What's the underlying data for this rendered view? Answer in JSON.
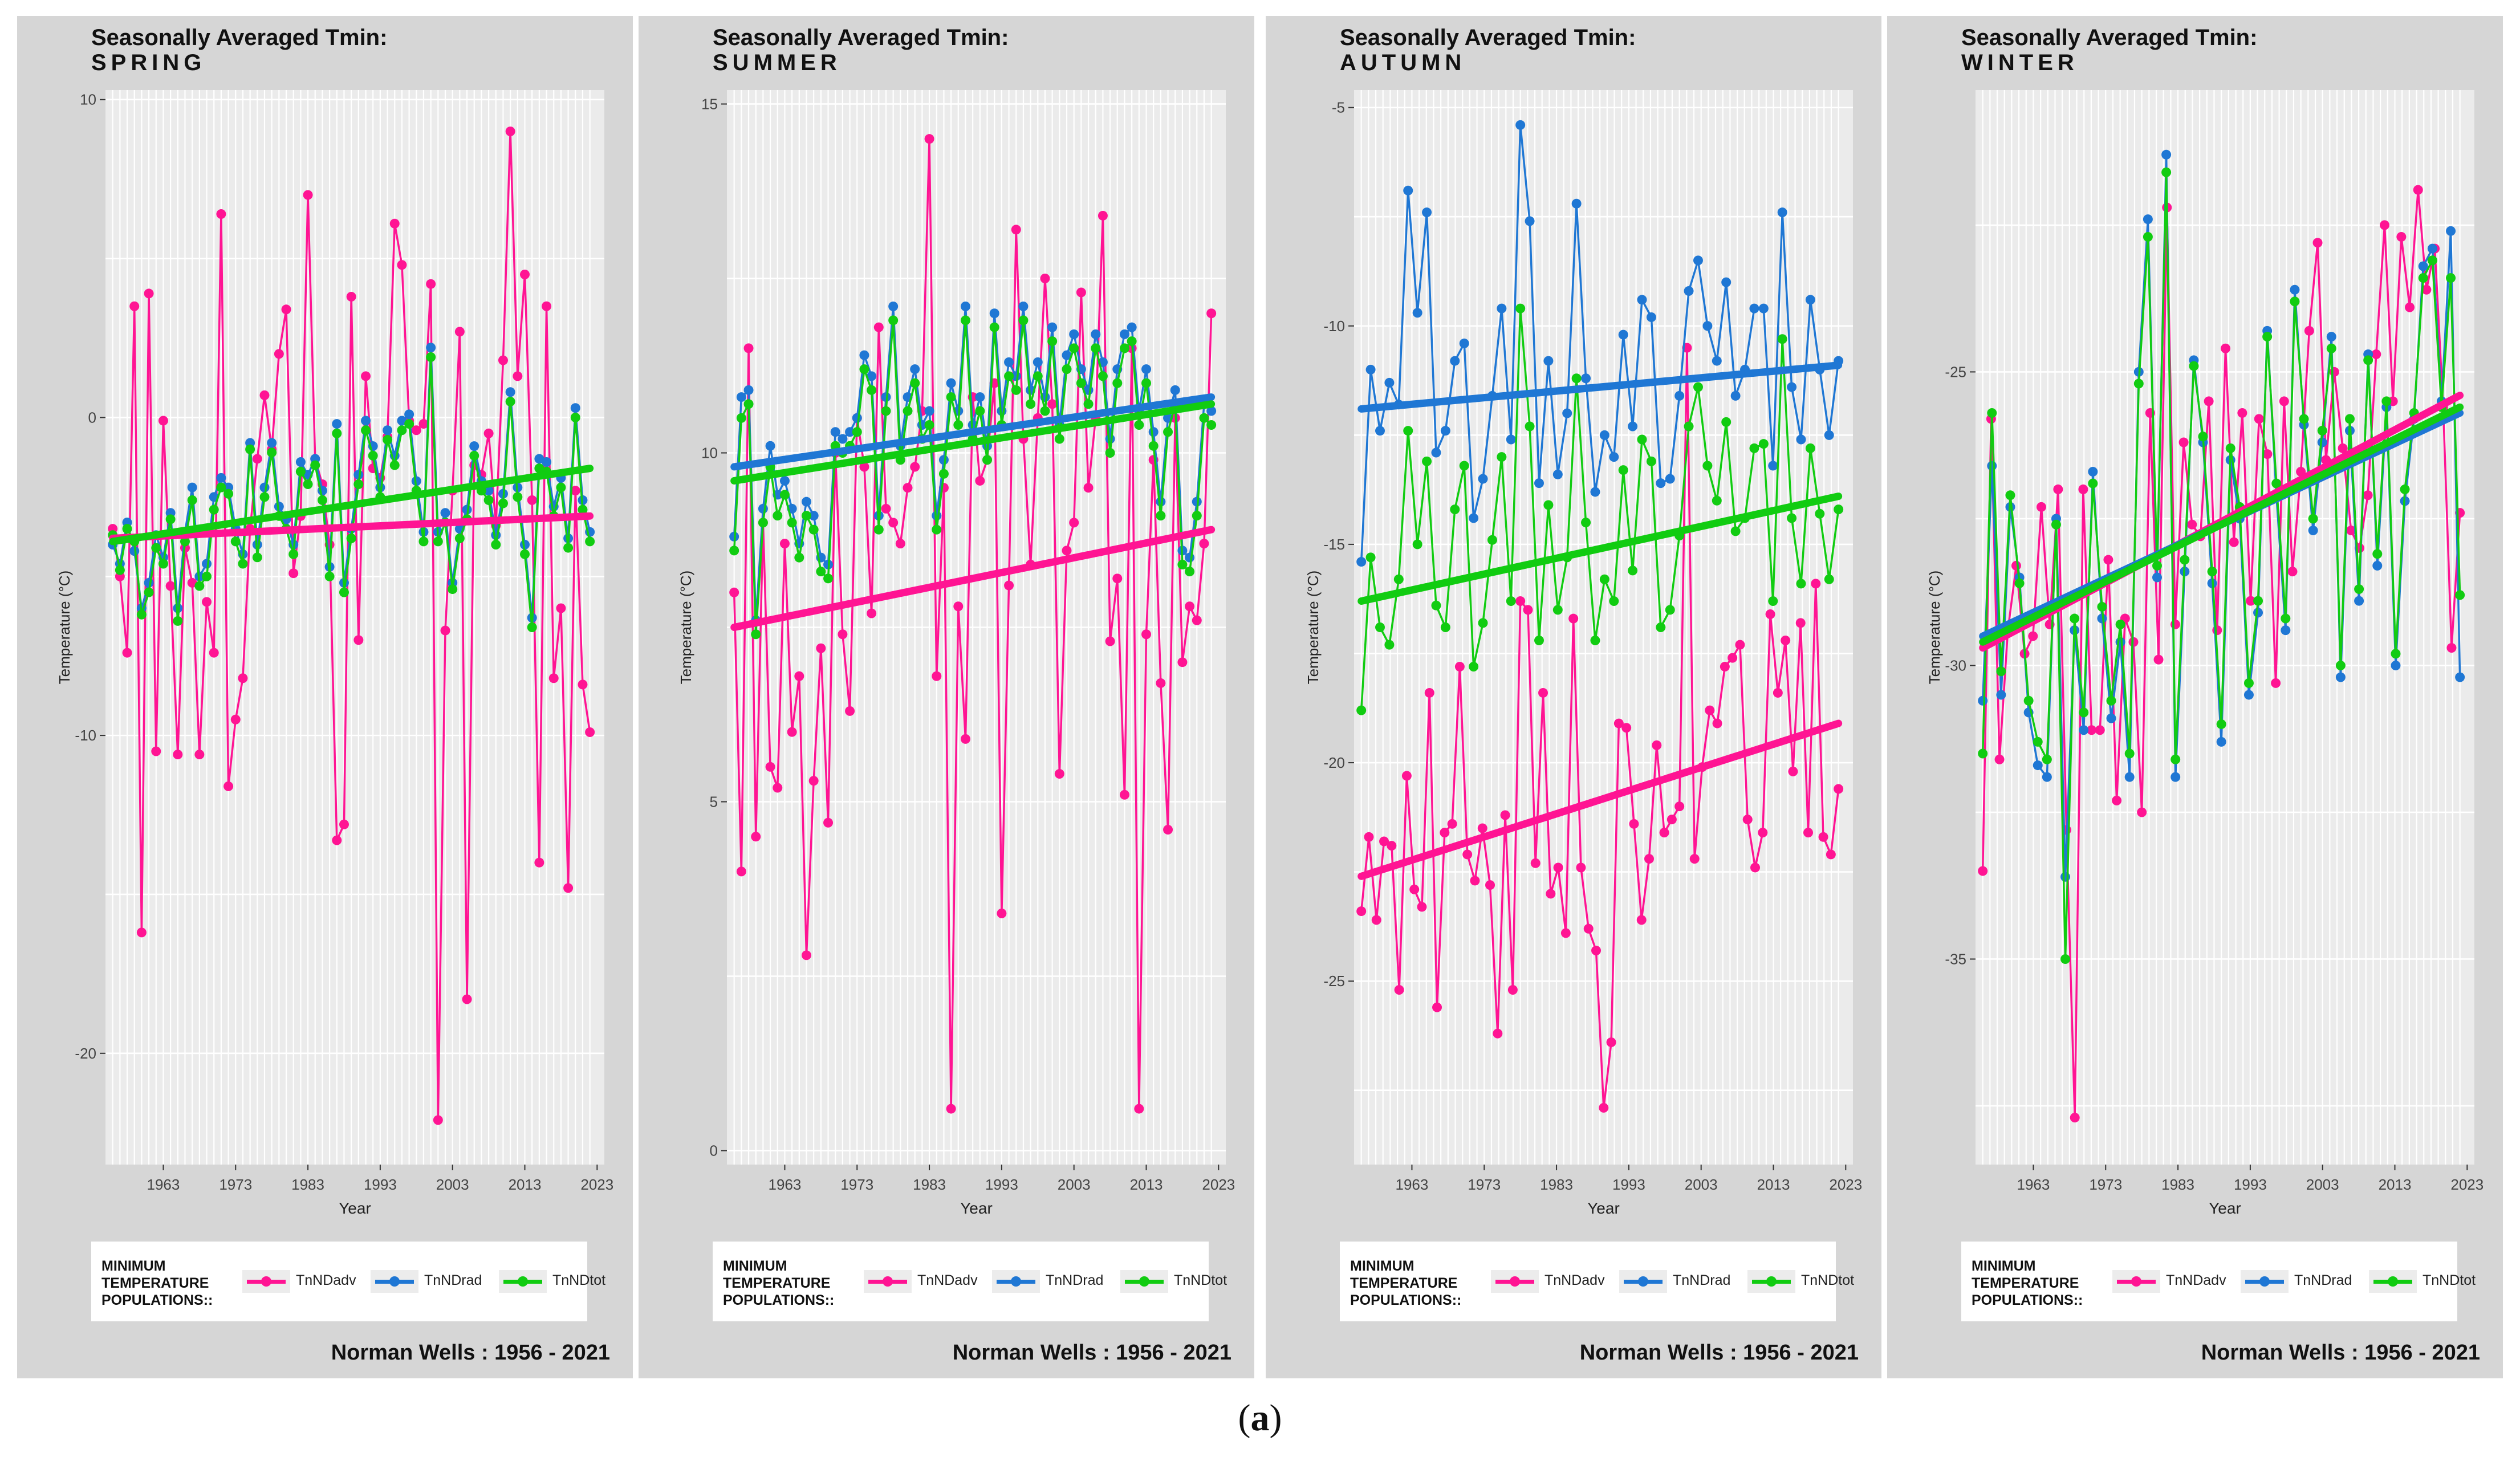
{
  "legend": {
    "title_lines": [
      "MINIMUM",
      "TEMPERATURE",
      "POPULATIONS::"
    ],
    "items": [
      {
        "label": "TnNDadv",
        "color": "#ff1493"
      },
      {
        "label": "TnNDrad",
        "color": "#1f77d4"
      },
      {
        "label": "TnNDtot",
        "color": "#11cc11"
      }
    ]
  },
  "footer": "Norman Wells :  1956 - 2021",
  "caption": {
    "open": "(",
    "letter": "a",
    "close": ")"
  },
  "chart_data": [
    {
      "type": "line",
      "title": "Seasonally Averaged Tmin:",
      "subtitle": "SPRING",
      "xlabel": "Year",
      "ylabel": "Temperature (°C)",
      "xlim": [
        1955,
        2024
      ],
      "ylim": [
        -23.5,
        10.3
      ],
      "xticks": [
        1963,
        1973,
        1983,
        1993,
        2003,
        2013,
        2023
      ],
      "yticks": [
        -20,
        -10,
        0,
        10
      ],
      "grid": true,
      "legend_position": "bottom",
      "series": [
        {
          "name": "TnNDadv",
          "color": "#ff1493",
          "y": [
            -3.5,
            -5,
            -7.4,
            3.5,
            -16.2,
            3.9,
            -10.5,
            -0.1,
            -5.3,
            -10.6,
            -4.1,
            -5.2,
            -10.6,
            -5.8,
            -7.4,
            6.4,
            -11.6,
            -9.5,
            -8.2,
            -3.5,
            -1.3,
            0.7,
            -1,
            2,
            3.4,
            -4.9,
            -3.1,
            7,
            -1.3,
            -2.1,
            -4,
            -13.3,
            -12.8,
            3.8,
            -7,
            1.3,
            -1.6,
            -1.9,
            -0.6,
            6.1,
            4.8,
            -0.1,
            -0.4,
            -0.2,
            4.2,
            -22.1,
            -6.7,
            -2.3,
            2.7,
            -18.3,
            -1.5,
            -1.8,
            -0.5,
            -3.4,
            1.8,
            9,
            1.3,
            4.5,
            -2.6,
            -14,
            3.5,
            -8.2,
            -6,
            -14.8,
            -2.3,
            -8.4,
            -9.9
          ]
        },
        {
          "name": "TnNDrad",
          "color": "#1f77d4",
          "y": [
            -4,
            -4.6,
            -3.3,
            -4.2,
            -6,
            -5.2,
            -3.7,
            -4.4,
            -3,
            -6,
            -3.6,
            -2.2,
            -5,
            -4.6,
            -2.5,
            -1.9,
            -2.2,
            -3.5,
            -4.3,
            -0.8,
            -4,
            -2.2,
            -0.8,
            -2.8,
            -3.2,
            -4,
            -1.4,
            -1.8,
            -1.3,
            -2.3,
            -4.7,
            -0.2,
            -5.2,
            -3.5,
            -1.8,
            -0.1,
            -0.9,
            -2.2,
            -0.4,
            -1.2,
            -0.1,
            0.1,
            -2,
            -3.6,
            2.2,
            -3.6,
            -3,
            -5.2,
            -3.5,
            -2.9,
            -0.9,
            -2,
            -2.3,
            -3.7,
            -2.4,
            0.8,
            -2.2,
            -4,
            -6.3,
            -1.3,
            -1.4,
            -2.8,
            -1.9,
            -3.8,
            0.3,
            -2.6,
            -3.6
          ]
        },
        {
          "name": "TnNDtot",
          "color": "#11cc11",
          "y": [
            -3.7,
            -4.8,
            -3.5,
            -3.9,
            -6.2,
            -5.5,
            -4.1,
            -4.6,
            -3.2,
            -6.4,
            -3.9,
            -2.6,
            -5.3,
            -5,
            -2.9,
            -2.2,
            -2.4,
            -3.9,
            -4.6,
            -1,
            -4.4,
            -2.5,
            -1.1,
            -3.1,
            -3.5,
            -4.3,
            -1.7,
            -2.1,
            -1.5,
            -2.6,
            -5,
            -0.5,
            -5.5,
            -3.8,
            -2.1,
            -0.4,
            -1.2,
            -2.5,
            -0.7,
            -1.5,
            -0.4,
            -0.2,
            -2.3,
            -3.9,
            1.9,
            -3.9,
            -3.3,
            -5.4,
            -3.8,
            -3.2,
            -1.2,
            -2.3,
            -2.6,
            -4,
            -2.7,
            0.5,
            -2.5,
            -4.3,
            -6.6,
            -1.6,
            -1.7,
            -3.1,
            -2.2,
            -4.1,
            0,
            -2.9,
            -3.9
          ]
        }
      ],
      "trends": [
        {
          "name": "TnNDadv",
          "start": -3.8,
          "end": -3.1
        },
        {
          "name": "TnNDtot",
          "start": -3.9,
          "end": -1.6
        }
      ]
    },
    {
      "type": "line",
      "title": "Seasonally Averaged Tmin:",
      "subtitle": "SUMMER",
      "xlabel": "Year",
      "ylabel": "Temperature (°C)",
      "xlim": [
        1955,
        2024
      ],
      "ylim": [
        -0.2,
        15.2
      ],
      "xticks": [
        1963,
        1973,
        1983,
        1993,
        2003,
        2013,
        2023
      ],
      "yticks": [
        0,
        5,
        10,
        15
      ],
      "grid": true,
      "legend_position": "bottom",
      "series": [
        {
          "name": "TnNDadv",
          "color": "#ff1493",
          "y": [
            8,
            4,
            11.5,
            4.5,
            9,
            5.5,
            5.2,
            8.7,
            6,
            6.8,
            2.8,
            5.3,
            7.2,
            4.7,
            10,
            7.4,
            6.3,
            10.5,
            9.8,
            7.7,
            11.8,
            9.2,
            9,
            8.7,
            9.5,
            9.8,
            10.6,
            14.5,
            6.8,
            9.5,
            0.6,
            7.8,
            5.9,
            10.8,
            9.6,
            9.9,
            11,
            3.4,
            8.1,
            13.2,
            10.2,
            8.4,
            10.5,
            12.5,
            10.7,
            5.4,
            8.6,
            9,
            12.3,
            9.5,
            10.5,
            13.4,
            7.3,
            8.2,
            5.1,
            11.5,
            0.6,
            7.4,
            9.9,
            6.7,
            4.6,
            10.5,
            7,
            7.8,
            7.6,
            8.7,
            12
          ]
        },
        {
          "name": "TnNDrad",
          "color": "#1f77d4",
          "y": [
            8.8,
            10.8,
            10.9,
            7.6,
            9.2,
            10.1,
            9.4,
            9.6,
            9.2,
            8.7,
            9.3,
            9.1,
            8.5,
            8.4,
            10.3,
            10.2,
            10.3,
            10.5,
            11.4,
            11.1,
            9.1,
            10.8,
            12.1,
            10.1,
            10.8,
            11.2,
            10.4,
            10.6,
            9.1,
            9.9,
            11,
            10.6,
            12.1,
            10.4,
            10.8,
            10.1,
            12,
            10.6,
            11.3,
            11.1,
            12.1,
            10.9,
            11.3,
            10.8,
            11.8,
            10.4,
            11.4,
            11.7,
            11.2,
            10.9,
            11.7,
            11.3,
            10.2,
            11.2,
            11.7,
            11.8,
            10.6,
            11.2,
            10.3,
            9.3,
            10.5,
            10.9,
            8.6,
            8.5,
            9.3,
            10.7,
            10.6
          ]
        },
        {
          "name": "TnNDtot",
          "color": "#11cc11",
          "y": [
            8.6,
            10.5,
            10.7,
            7.4,
            9,
            9.8,
            9.1,
            9.4,
            9,
            8.5,
            9.1,
            8.9,
            8.3,
            8.2,
            10.1,
            10,
            10.1,
            10.3,
            11.2,
            10.9,
            8.9,
            10.6,
            11.9,
            9.9,
            10.6,
            11,
            10.2,
            10.4,
            8.9,
            9.7,
            10.8,
            10.4,
            11.9,
            10.2,
            10.6,
            9.9,
            11.8,
            10.4,
            11.1,
            10.9,
            11.9,
            10.7,
            11.1,
            10.6,
            11.6,
            10.2,
            11.2,
            11.5,
            11,
            10.7,
            11.5,
            11.1,
            10,
            11,
            11.5,
            11.6,
            10.4,
            11,
            10.1,
            9.1,
            10.3,
            10.7,
            8.4,
            8.3,
            9.1,
            10.5,
            10.4
          ]
        }
      ],
      "trends": [
        {
          "name": "TnNDadv",
          "start": 7.5,
          "end": 8.9
        },
        {
          "name": "TnNDrad",
          "start": 9.8,
          "end": 10.8
        },
        {
          "name": "TnNDtot",
          "start": 9.6,
          "end": 10.7
        }
      ]
    },
    {
      "type": "line",
      "title": "Seasonally Averaged Tmin:",
      "subtitle": "AUTUMN",
      "xlabel": "Year",
      "ylabel": "Temperature (°C)",
      "xlim": [
        1955,
        2024
      ],
      "ylim": [
        -29.2,
        -4.6
      ],
      "xticks": [
        1963,
        1973,
        1983,
        1993,
        2003,
        2013,
        2023
      ],
      "yticks": [
        -25,
        -20,
        -15,
        -10,
        -5
      ],
      "grid": true,
      "legend_position": "bottom",
      "series": [
        {
          "name": "TnNDadv",
          "color": "#ff1493",
          "y": [
            -23.4,
            -21.7,
            -23.6,
            -21.8,
            -21.9,
            -25.2,
            -20.3,
            -22.9,
            -23.3,
            -18.4,
            -25.6,
            -21.6,
            -21.4,
            -17.8,
            -22.1,
            -22.7,
            -21.5,
            -22.8,
            -26.2,
            -21.2,
            -25.2,
            -16.3,
            -16.5,
            -22.3,
            -18.4,
            -23,
            -22.4,
            -23.9,
            -16.7,
            -22.4,
            -23.8,
            -24.3,
            -27.9,
            -26.4,
            -19.1,
            -19.2,
            -21.4,
            -23.6,
            -22.2,
            -19.6,
            -21.6,
            -21.3,
            -21,
            -10.5,
            -22.2,
            -20.1,
            -18.8,
            -19.1,
            -17.8,
            -17.6,
            -17.3,
            -21.3,
            -22.4,
            -21.6,
            -16.6,
            -18.4,
            -17.2,
            -20.2,
            -16.8,
            -21.6,
            -15.9,
            -21.7,
            -22.1,
            -20.6
          ]
        },
        {
          "name": "TnNDrad",
          "color": "#1f77d4",
          "y": [
            -15.4,
            -11,
            -12.4,
            -11.3,
            -11.8,
            -6.9,
            -9.7,
            -7.4,
            -12.9,
            -12.4,
            -10.8,
            -10.4,
            -14.4,
            -13.5,
            -11.6,
            -9.6,
            -12.6,
            -5.4,
            -7.6,
            -13.6,
            -10.8,
            -13.4,
            -12,
            -7.2,
            -11.2,
            -13.8,
            -12.5,
            -13,
            -10.2,
            -12.3,
            -9.4,
            -9.8,
            -13.6,
            -13.5,
            -11.6,
            -9.2,
            -8.5,
            -10,
            -10.8,
            -9,
            -11.6,
            -11,
            -9.6,
            -9.6,
            -13.2,
            -7.4,
            -11.4,
            -12.6,
            -9.4,
            -11,
            -12.5,
            -10.8
          ]
        },
        {
          "name": "TnNDtot",
          "color": "#11cc11",
          "y": [
            -18.8,
            -15.3,
            -16.9,
            -17.3,
            -15.8,
            -12.4,
            -15,
            -13.1,
            -16.4,
            -16.9,
            -14.2,
            -13.2,
            -17.8,
            -16.8,
            -14.9,
            -13,
            -16.3,
            -9.6,
            -12.3,
            -17.2,
            -14.1,
            -16.5,
            -15.3,
            -11.2,
            -14.5,
            -17.2,
            -15.8,
            -16.3,
            -13.3,
            -15.6,
            -12.6,
            -13.1,
            -16.9,
            -16.5,
            -14.8,
            -12.3,
            -11.4,
            -13.2,
            -14,
            -12.2,
            -14.7,
            -14.4,
            -12.8,
            -12.7,
            -16.3,
            -10.3,
            -14.4,
            -15.9,
            -12.8,
            -14.3,
            -15.8,
            -14.2
          ]
        }
      ],
      "trends": [
        {
          "name": "TnNDadv",
          "start": -22.6,
          "end": -19.1
        },
        {
          "name": "TnNDrad",
          "start": -11.9,
          "end": -10.9
        },
        {
          "name": "TnNDtot",
          "start": -16.3,
          "end": -13.9
        }
      ]
    },
    {
      "type": "line",
      "title": "Seasonally Averaged Tmin:",
      "subtitle": "WINTER",
      "xlabel": "Year",
      "ylabel": "Temperature (°C)",
      "xlim": [
        1955,
        2024
      ],
      "ylim": [
        -38.5,
        -20.2
      ],
      "xticks": [
        1963,
        1973,
        1983,
        1993,
        2003,
        2013,
        2023
      ],
      "yticks": [
        -35,
        -30,
        -25
      ],
      "grid": true,
      "legend_position": "bottom",
      "series": [
        {
          "name": "TnNDadv",
          "color": "#ff1493",
          "y": [
            -33.5,
            -25.8,
            -31.6,
            -29.4,
            -28.3,
            -29.8,
            -29.5,
            -27.3,
            -29.3,
            -27,
            -32.8,
            -37.7,
            -27,
            -31.1,
            -31.1,
            -28.2,
            -32.3,
            -29.2,
            -29.6,
            -32.5,
            -25.7,
            -29.9,
            -22.2,
            -29.3,
            -26.2,
            -27.6,
            -27.8,
            -25.5,
            -29.4,
            -24.6,
            -27.9,
            -25.7,
            -28.9,
            -25.8,
            -26.4,
            -30.3,
            -25.5,
            -28.4,
            -26.7,
            -24.3,
            -22.8,
            -26.5,
            -25,
            -26.3,
            -27.7,
            -28,
            -27.1,
            -24.7,
            -22.5,
            -25.5,
            -22.7,
            -23.9,
            -21.9,
            -23.6,
            -22.9,
            -25.6,
            -29.7,
            -27.4
          ]
        },
        {
          "name": "TnNDrad",
          "color": "#1f77d4",
          "y": [
            -30.6,
            -26.6,
            -30.5,
            -27.3,
            -28.5,
            -30.8,
            -31.7,
            -31.9,
            -27.5,
            -33.6,
            -29.4,
            -31.1,
            -26.7,
            -29.2,
            -30.9,
            -29.6,
            -31.9,
            -25,
            -22.4,
            -28.5,
            -21.3,
            -31.9,
            -28.4,
            -24.8,
            -26.2,
            -28.6,
            -31.3,
            -26.5,
            -27.5,
            -30.5,
            -29.1,
            -24.3,
            -27.1,
            -29.4,
            -23.6,
            -25.9,
            -27.7,
            -26.2,
            -24.4,
            -30.2,
            -26,
            -28.9,
            -24.7,
            -28.3,
            -25.6,
            -30,
            -27.2,
            -25.8,
            -23.2,
            -22.9,
            -25.5,
            -22.6,
            -30.2
          ]
        },
        {
          "name": "TnNDtot",
          "color": "#11cc11",
          "y": [
            -31.5,
            -25.7,
            -30.1,
            -27.1,
            -28.6,
            -30.6,
            -31.3,
            -31.6,
            -27.6,
            -35,
            -29.2,
            -30.8,
            -26.9,
            -29,
            -30.6,
            -29.3,
            -31.5,
            -25.2,
            -22.7,
            -28.3,
            -21.6,
            -31.6,
            -28.2,
            -24.9,
            -26.1,
            -28.4,
            -31,
            -26.3,
            -27.3,
            -30.3,
            -28.9,
            -24.4,
            -26.9,
            -29.2,
            -23.8,
            -25.8,
            -27.5,
            -26,
            -24.6,
            -30,
            -25.8,
            -28.7,
            -24.8,
            -28.1,
            -25.5,
            -29.8,
            -27,
            -25.7,
            -23.4,
            -23.1,
            -25.6,
            -23.4,
            -28.8
          ]
        }
      ],
      "trends": [
        {
          "name": "TnNDadv",
          "start": -29.7,
          "end": -25.4
        },
        {
          "name": "TnNDrad",
          "start": -29.5,
          "end": -25.7
        },
        {
          "name": "TnNDtot",
          "start": -29.6,
          "end": -25.6
        }
      ]
    }
  ]
}
